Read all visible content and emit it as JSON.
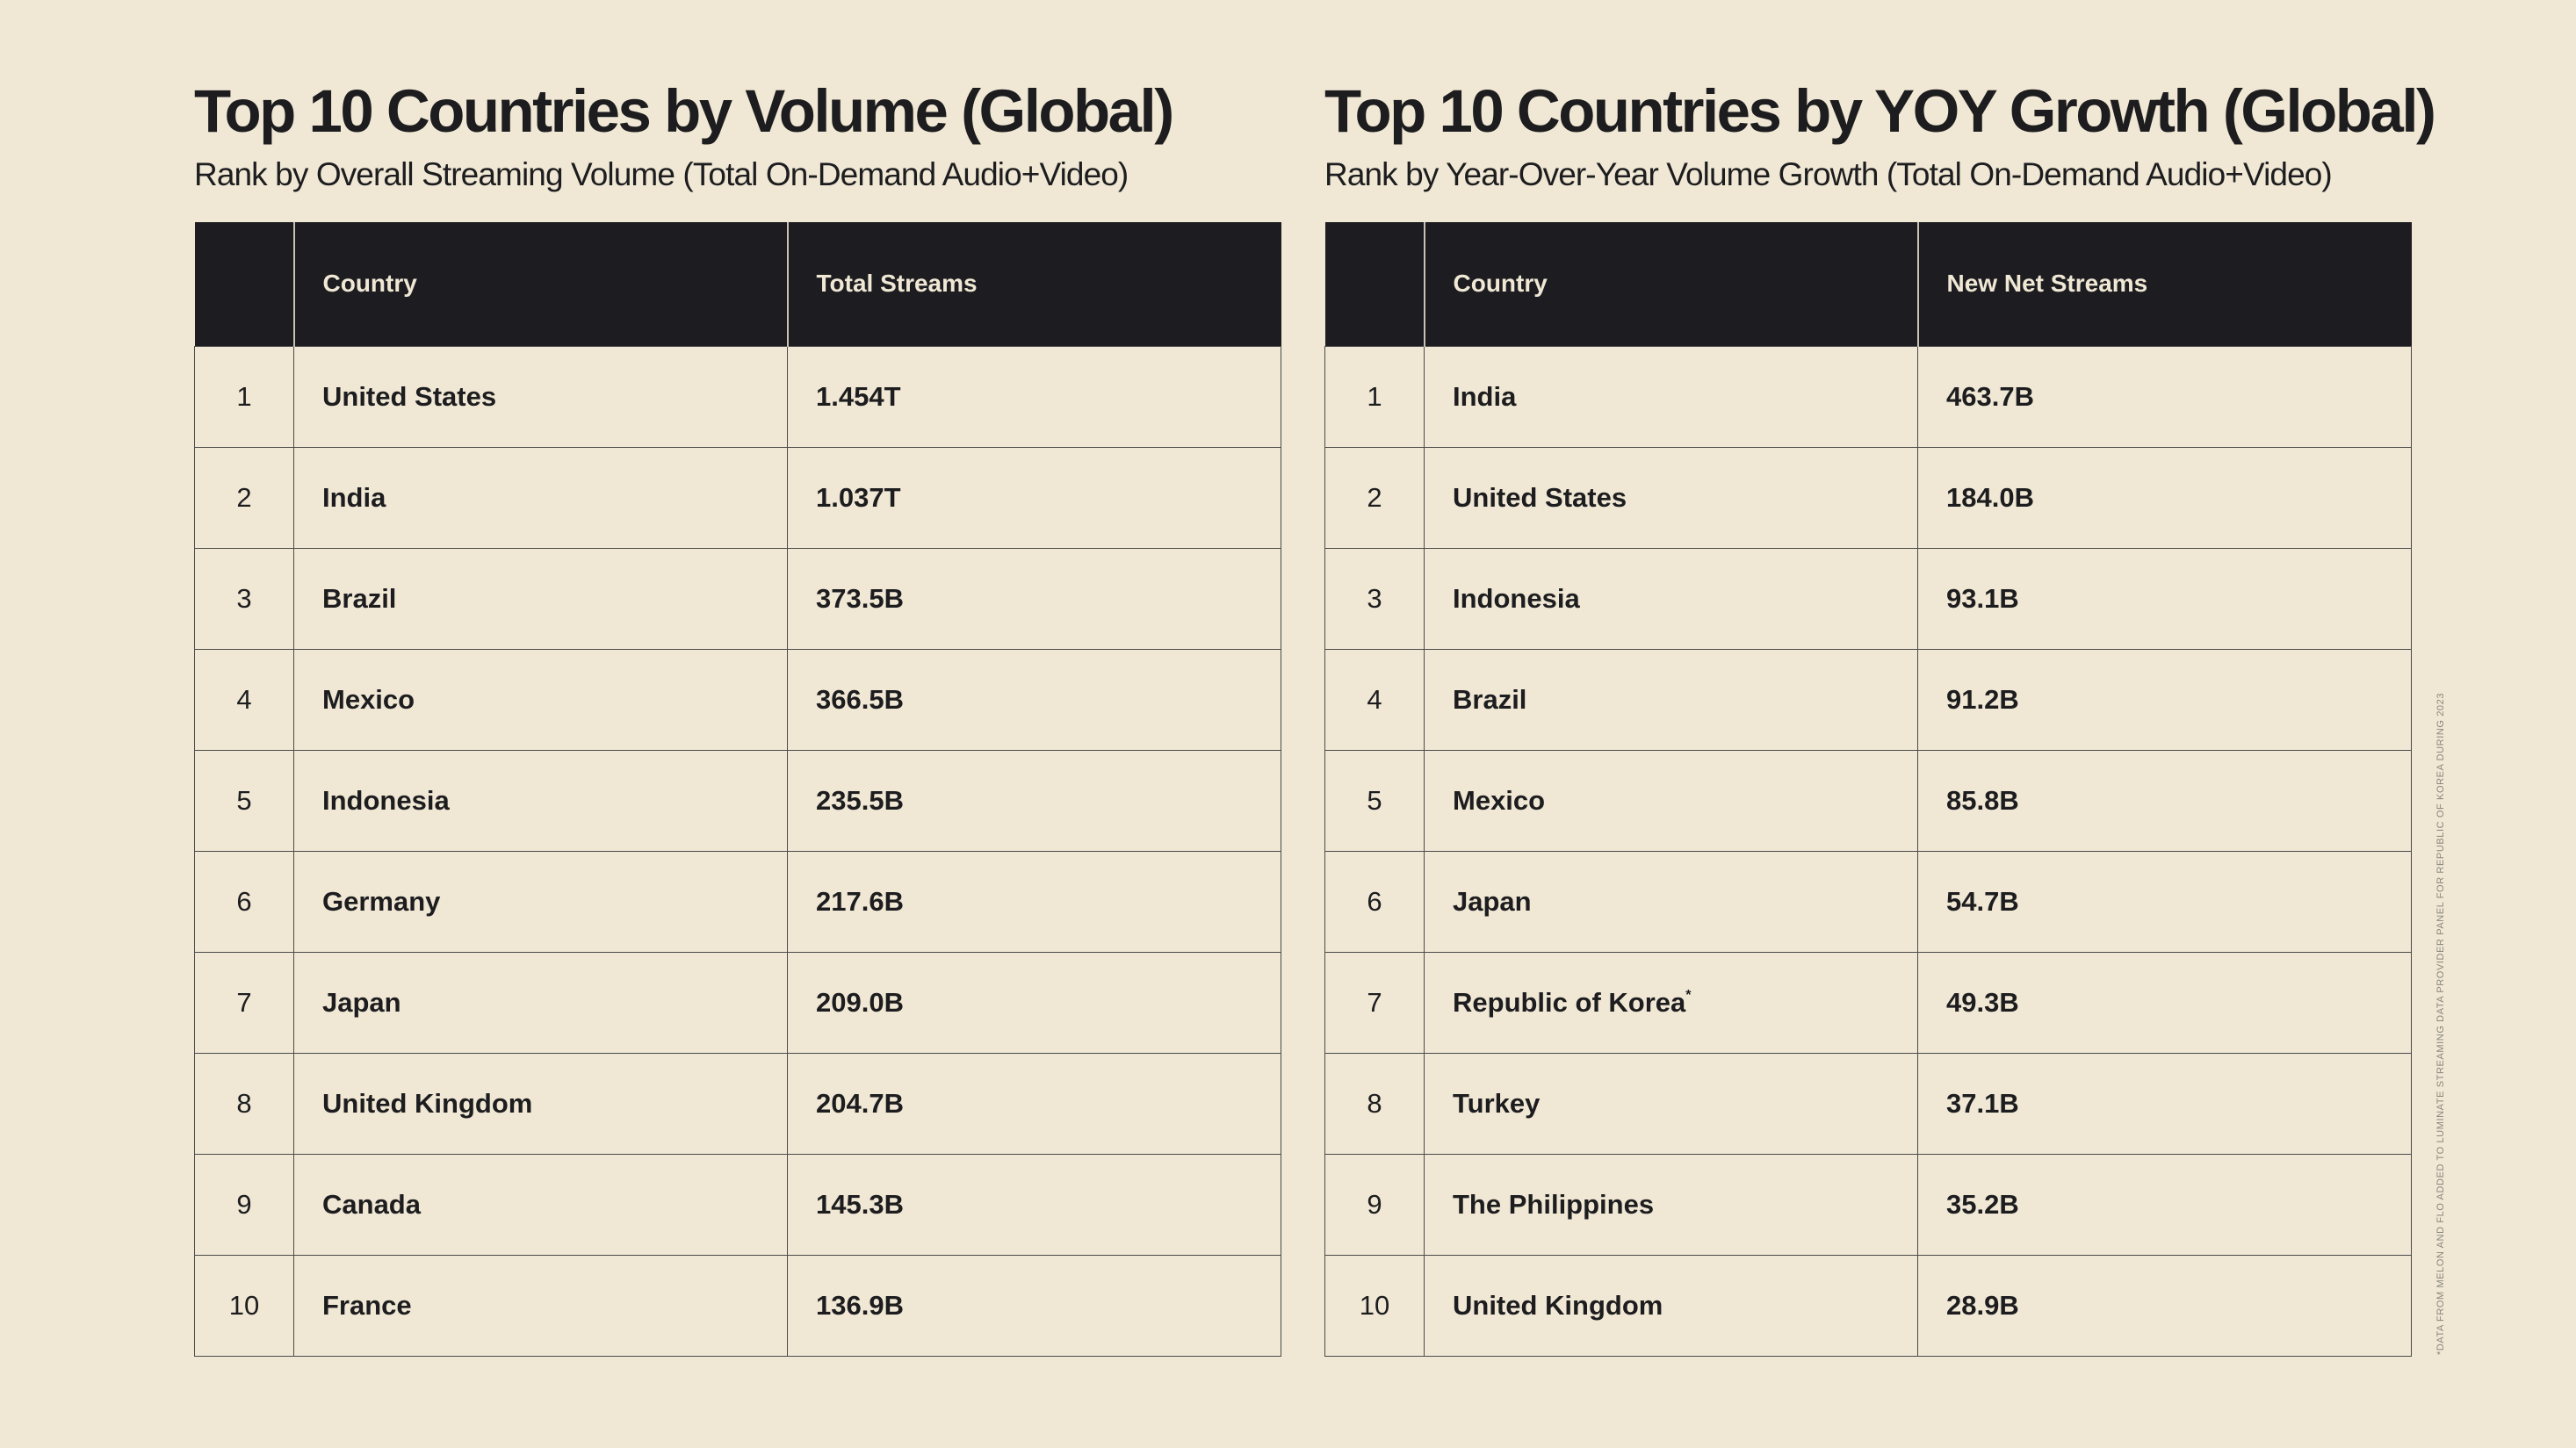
{
  "volume_panel": {
    "title": "Top 10 Countries by Volume (Global)",
    "subtitle": "Rank by Overall Streaming Volume (Total On-Demand Audio+Video)",
    "columns": [
      "",
      "Country",
      "Total Streams"
    ],
    "rows": [
      {
        "rank": "1",
        "country": "United States",
        "value": "1.454T"
      },
      {
        "rank": "2",
        "country": "India",
        "value": "1.037T"
      },
      {
        "rank": "3",
        "country": "Brazil",
        "value": "373.5B"
      },
      {
        "rank": "4",
        "country": "Mexico",
        "value": "366.5B"
      },
      {
        "rank": "5",
        "country": "Indonesia",
        "value": "235.5B"
      },
      {
        "rank": "6",
        "country": "Germany",
        "value": "217.6B"
      },
      {
        "rank": "7",
        "country": "Japan",
        "value": "209.0B"
      },
      {
        "rank": "8",
        "country": "United Kingdom",
        "value": "204.7B"
      },
      {
        "rank": "9",
        "country": "Canada",
        "value": "145.3B"
      },
      {
        "rank": "10",
        "country": "France",
        "value": "136.9B"
      }
    ]
  },
  "growth_panel": {
    "title": "Top 10 Countries by YOY Growth (Global)",
    "subtitle": "Rank by Year-Over-Year Volume Growth (Total On-Demand Audio+Video)",
    "columns": [
      "",
      "Country",
      "New Net Streams"
    ],
    "rows": [
      {
        "rank": "1",
        "country": "India",
        "value": "463.7B"
      },
      {
        "rank": "2",
        "country": "United States",
        "value": "184.0B"
      },
      {
        "rank": "3",
        "country": "Indonesia",
        "value": "93.1B"
      },
      {
        "rank": "4",
        "country": "Brazil",
        "value": "91.2B"
      },
      {
        "rank": "5",
        "country": "Mexico",
        "value": "85.8B"
      },
      {
        "rank": "6",
        "country": "Japan",
        "value": "54.7B"
      },
      {
        "rank": "7",
        "country": "Republic of Korea",
        "value": "49.3B",
        "mark": "*"
      },
      {
        "rank": "8",
        "country": "Turkey",
        "value": "37.1B"
      },
      {
        "rank": "9",
        "country": "The Philippines",
        "value": "35.2B"
      },
      {
        "rank": "10",
        "country": "United Kingdom",
        "value": "28.9B"
      }
    ]
  },
  "footnote": "*DATA FROM MELON AND FLO ADDED TO LUMINATE STREAMING DATA PROVIDER PANEL FOR REPUBLIC OF KOREA DURING 2023",
  "colors": {
    "background": "#f0e8d5",
    "header_background": "#1d1d21",
    "text": "#1d1d1f"
  }
}
